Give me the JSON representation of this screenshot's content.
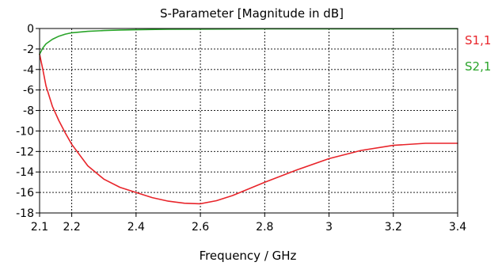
{
  "chart_data": {
    "type": "line",
    "title": "S-Parameter [Magnitude in dB]",
    "xlabel": "Frequency / GHz",
    "ylabel": "",
    "xlim": [
      2.1,
      3.4
    ],
    "ylim": [
      -18,
      0
    ],
    "x_ticks": [
      "2.1",
      "2.2",
      "2.4",
      "2.6",
      "2.8",
      "3",
      "3.2",
      "3.4"
    ],
    "y_ticks": [
      "0",
      "-2",
      "-4",
      "-6",
      "-8",
      "-10",
      "-12",
      "-14",
      "-16",
      "-18"
    ],
    "grid": true,
    "legend_placement": "right",
    "series": [
      {
        "name": "S1,1",
        "color": "#e8242a",
        "x": [
          2.1,
          2.11,
          2.12,
          2.14,
          2.16,
          2.18,
          2.2,
          2.25,
          2.3,
          2.35,
          2.4,
          2.45,
          2.5,
          2.55,
          2.6,
          2.65,
          2.7,
          2.8,
          2.9,
          3.0,
          3.1,
          3.2,
          3.3,
          3.4
        ],
        "y": [
          -2.5,
          -4.0,
          -5.6,
          -7.6,
          -9.0,
          -10.2,
          -11.3,
          -13.4,
          -14.7,
          -15.5,
          -16.0,
          -16.5,
          -16.85,
          -17.05,
          -17.1,
          -16.8,
          -16.3,
          -15.0,
          -13.8,
          -12.7,
          -11.9,
          -11.4,
          -11.2,
          -11.2
        ]
      },
      {
        "name": "S2,1",
        "color": "#2aa42a",
        "x": [
          2.1,
          2.11,
          2.12,
          2.14,
          2.16,
          2.18,
          2.2,
          2.25,
          2.3,
          2.35,
          2.4,
          2.5,
          2.6,
          2.8,
          3.0,
          3.2,
          3.4
        ],
        "y": [
          -2.5,
          -1.9,
          -1.5,
          -1.05,
          -0.75,
          -0.55,
          -0.42,
          -0.28,
          -0.2,
          -0.15,
          -0.12,
          -0.08,
          -0.06,
          -0.04,
          -0.03,
          -0.03,
          -0.02
        ]
      }
    ]
  }
}
